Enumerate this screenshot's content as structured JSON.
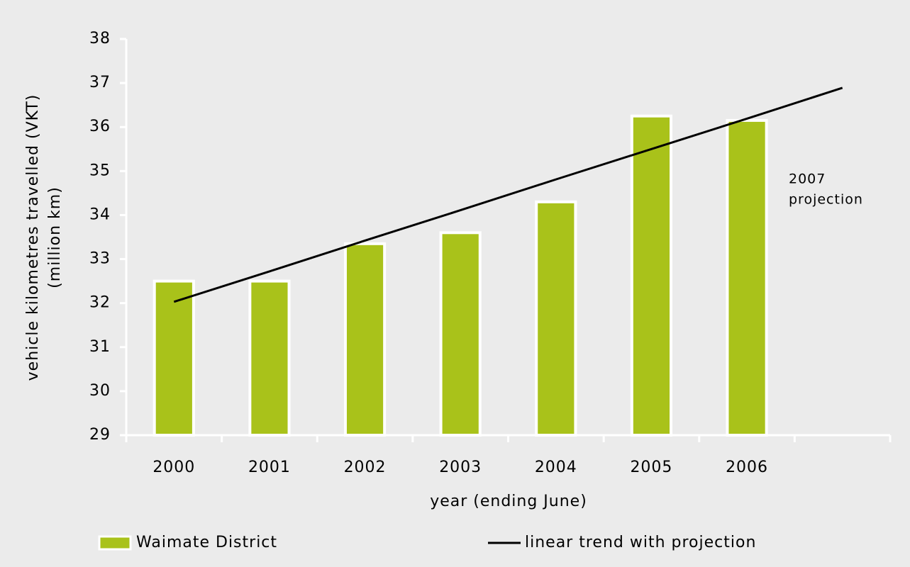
{
  "chart_data": {
    "type": "bar",
    "categories": [
      "2000",
      "2001",
      "2002",
      "2003",
      "2004",
      "2005",
      "2006",
      null
    ],
    "series": [
      {
        "name": "Waimate District",
        "type": "bar",
        "color": "#a9c21a",
        "values": [
          32.5,
          32.5,
          33.35,
          33.6,
          34.3,
          36.25,
          36.15,
          null
        ]
      },
      {
        "name": "linear trend with projection",
        "type": "line",
        "color": "#000000",
        "values": [
          32.03,
          32.72,
          33.42,
          34.11,
          34.81,
          35.5,
          36.19,
          36.89
        ]
      }
    ],
    "ylim": [
      29,
      38
    ],
    "yticks": [
      29,
      30,
      31,
      32,
      33,
      34,
      35,
      36,
      37,
      38
    ],
    "y_label": [
      "vehicle kilometres travelled (VKT)",
      "(million km)"
    ],
    "x_label": "year (ending June)",
    "annotation": [
      "2007",
      "projection"
    ],
    "grid": false
  }
}
